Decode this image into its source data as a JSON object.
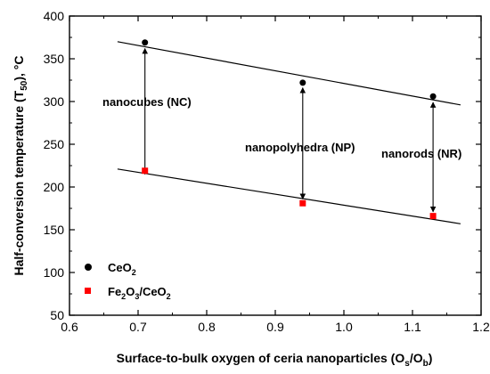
{
  "chart_data": {
    "type": "scatter",
    "xlabel": {
      "main": "Surface-to-bulk oxygen of ceria nanoparticles (O",
      "sub1": "s",
      "mid": "/O",
      "sub2": "b",
      "end": ")"
    },
    "ylabel": {
      "main": "Half-conversion temperature (T",
      "sub": "50",
      "end": "), °C"
    },
    "xlim": [
      0.6,
      1.2
    ],
    "ylim": [
      50,
      400
    ],
    "xticks": [
      "0.6",
      "0.7",
      "0.8",
      "0.9",
      "1.0",
      "1.1",
      "1.2"
    ],
    "yticks": [
      "50",
      "100",
      "150",
      "200",
      "250",
      "300",
      "350",
      "400"
    ],
    "grid": false,
    "legend_position": "bottom-left",
    "series": [
      {
        "id": "ceo2",
        "legend": {
          "main": "CeO",
          "sub": "2"
        },
        "marker": "circle",
        "color": "#000000",
        "x": [
          0.71,
          0.94,
          1.13
        ],
        "y": [
          369,
          322,
          306
        ]
      },
      {
        "id": "fe2o3_ceo2",
        "legend": {
          "p1": "Fe",
          "s1": "2",
          "p2": "O",
          "s2": "3",
          "p3": "/CeO",
          "s3": "2"
        },
        "marker": "square",
        "color": "#ff0000",
        "x": [
          0.71,
          0.94,
          1.13
        ],
        "y": [
          219,
          181,
          166
        ]
      }
    ],
    "trend_lines": [
      {
        "series": "ceo2",
        "x": [
          0.67,
          1.17
        ],
        "y": [
          370,
          296
        ]
      },
      {
        "series": "fe2o3_ceo2",
        "x": [
          0.67,
          1.17
        ],
        "y": [
          221,
          157
        ]
      }
    ],
    "annotations": [
      {
        "text": "nanocubes (NC)",
        "x": 0.71
      },
      {
        "text": "nanopolyhedra (NP)",
        "x": 0.94
      },
      {
        "text": "nanorods (NR)",
        "x": 1.13
      }
    ],
    "arrows": [
      {
        "x": 0.71,
        "y_from": 215,
        "y_to": 362
      },
      {
        "x": 0.94,
        "y_from": 186,
        "y_to": 316
      },
      {
        "x": 1.13,
        "y_from": 171,
        "y_to": 299
      }
    ]
  }
}
